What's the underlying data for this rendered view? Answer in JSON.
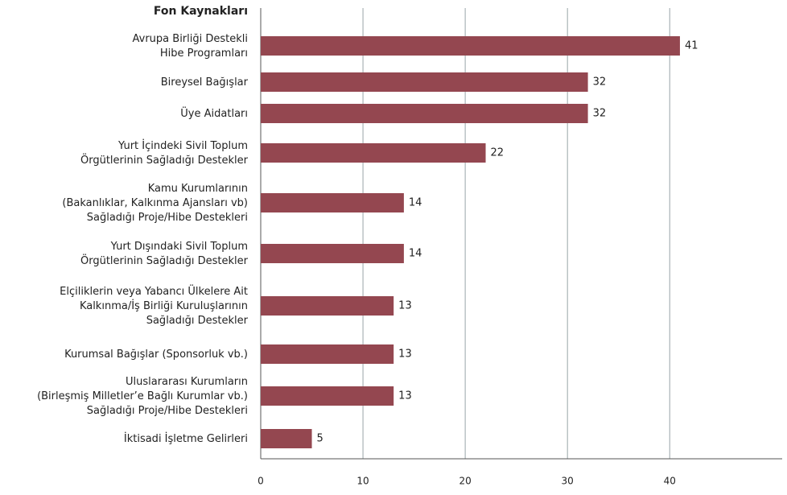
{
  "chart_data": {
    "type": "barh",
    "title": "Fon Kaynakları",
    "categories": [
      "Avrupa Birliği Destekli\nHibe Programları",
      "Bireysel Bağışlar",
      "Üye Aidatları",
      "Yurt İçindeki Sivil Toplum\nÖrgütlerinin Sağladığı Destekler",
      "Kamu Kurumlarının\n(Bakanlıklar, Kalkınma Ajansları vb)\nSağladığı Proje/Hibe Destekleri",
      "Yurt Dışındaki Sivil Toplum\nÖrgütlerinin Sağladığı Destekler",
      "Elçiliklerin veya Yabancı Ülkelere Ait\nKalkınma/İş Birliği Kuruluşlarının\nSağladığı Destekler",
      "Kurumsal Bağışlar (Sponsorluk vb.)",
      "Uluslararası Kurumların\n(Birleşmiş Milletler’e Bağlı Kurumlar vb.)\nSağladığı Proje/Hibe Destekleri",
      "İktisadi İşletme Gelirleri"
    ],
    "values": [
      41,
      32,
      32,
      22,
      14,
      14,
      13,
      13,
      13,
      5
    ],
    "color": "#944750",
    "xlim": [
      0,
      51
    ],
    "xticks": [
      0,
      10,
      20,
      30,
      40
    ],
    "grid": true
  }
}
